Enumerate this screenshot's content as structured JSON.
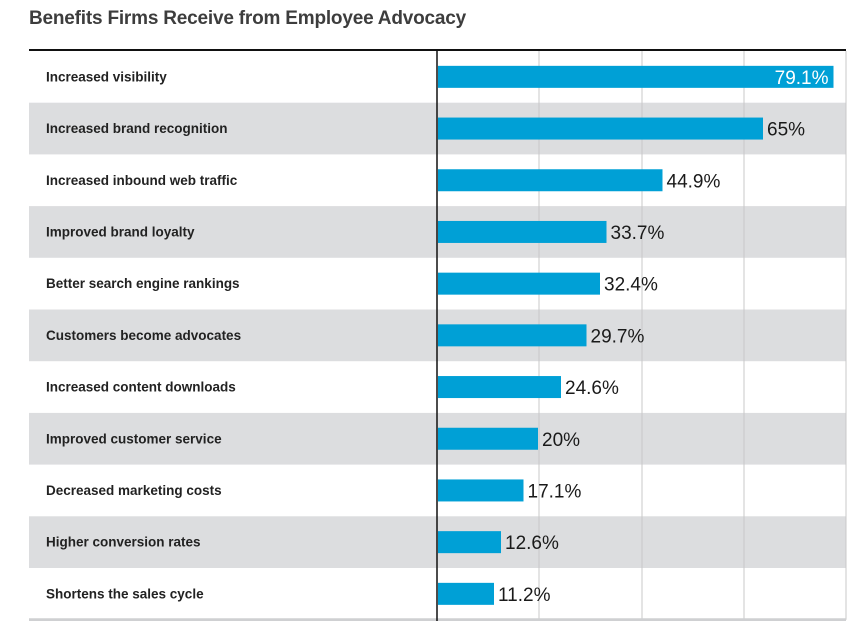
{
  "chart_data": {
    "type": "bar",
    "orientation": "horizontal",
    "title": "Benefits Firms Receive from Employee Advocacy",
    "xlabel": "",
    "ylabel": "",
    "xlim": [
      0,
      82
    ],
    "grid": true,
    "categories": [
      "Increased visibility",
      "Increased brand recognition",
      "Increased inbound web traffic",
      "Improved brand loyalty",
      "Better search engine rankings",
      "Customers become advocates",
      "Increased content downloads",
      "Improved customer service",
      "Decreased marketing costs",
      "Higher conversion rates",
      "Shortens the sales cycle"
    ],
    "values": [
      79.1,
      65,
      44.9,
      33.7,
      32.4,
      29.7,
      24.6,
      20,
      17.1,
      12.6,
      11.2
    ],
    "value_labels": [
      "79.1%",
      "65%",
      "44.9%",
      "33.7%",
      "32.4%",
      "29.7%",
      "24.6%",
      "20%",
      "17.1%",
      "12.6%",
      "11.2%"
    ],
    "colors": {
      "bar": "#00a0d6",
      "row_alt": "#dcdddf",
      "grid": "#c8c8c8",
      "text": "#1a1a1a"
    }
  }
}
